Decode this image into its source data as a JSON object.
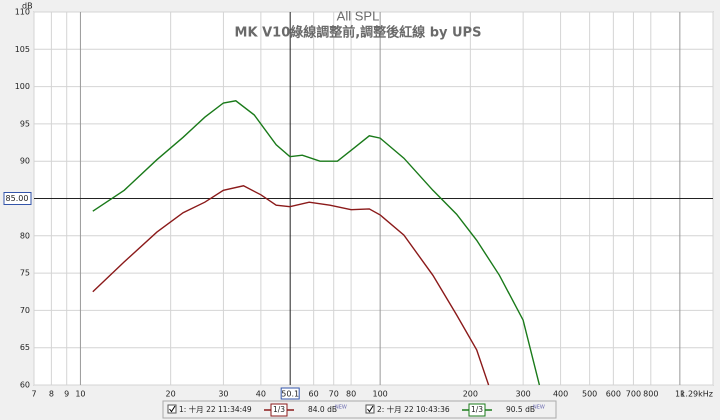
{
  "chart_data": {
    "type": "line",
    "title": "All SPL",
    "subtitle": "MK V10綠線調整前,調整後紅線 by UPS",
    "y_label": "dB",
    "xscale": "log",
    "xlim": [
      7,
      1290
    ],
    "ylim": [
      60,
      110
    ],
    "xticks": [
      7,
      8,
      9,
      10,
      20,
      30,
      40,
      60,
      70,
      80,
      100,
      200,
      300,
      400,
      500,
      600,
      700,
      800,
      {
        "value": 1000,
        "label": "1k"
      },
      {
        "value": 1290,
        "label": "1.29kHz"
      }
    ],
    "yticks": [
      60,
      65,
      70,
      75,
      80,
      85,
      90,
      95,
      100,
      105,
      110
    ],
    "grid": true,
    "cursor": {
      "x": {
        "value": 50.1,
        "label": "50.1"
      },
      "y": {
        "value": 85,
        "label": "85.00"
      }
    },
    "series": [
      {
        "name": "1: 十月 22 11:34:49",
        "color": "#8b1a1a",
        "smoothing": "1/3",
        "level": "84.0 dB",
        "badge": "NEW",
        "x": [
          11,
          14,
          18,
          22,
          26,
          30,
          35,
          40,
          45,
          50,
          58,
          68,
          80,
          92,
          100,
          120,
          150,
          180,
          210,
          230
        ],
        "values": [
          72.5,
          76.5,
          80.5,
          83.1,
          84.5,
          86.1,
          86.7,
          85.5,
          84.1,
          83.9,
          84.5,
          84.1,
          83.5,
          83.6,
          82.8,
          80.1,
          74.7,
          69.4,
          64.7,
          60
        ]
      },
      {
        "name": "2: 十月 22 10:43:36",
        "color": "#1a7a1a",
        "smoothing": "1/3",
        "level": "90.5 dB",
        "badge": "NEW",
        "x": [
          11,
          14,
          18,
          22,
          26,
          30,
          33,
          38,
          45,
          50,
          55,
          63,
          72,
          82,
          92,
          100,
          120,
          150,
          180,
          210,
          250,
          300,
          340
        ],
        "values": [
          83.3,
          86.1,
          90.2,
          93.2,
          95.9,
          97.8,
          98.1,
          96.2,
          92.2,
          90.6,
          90.8,
          90.0,
          90.0,
          91.8,
          93.4,
          93.1,
          90.4,
          86.1,
          82.9,
          79.4,
          74.7,
          68.7,
          60
        ]
      }
    ]
  }
}
